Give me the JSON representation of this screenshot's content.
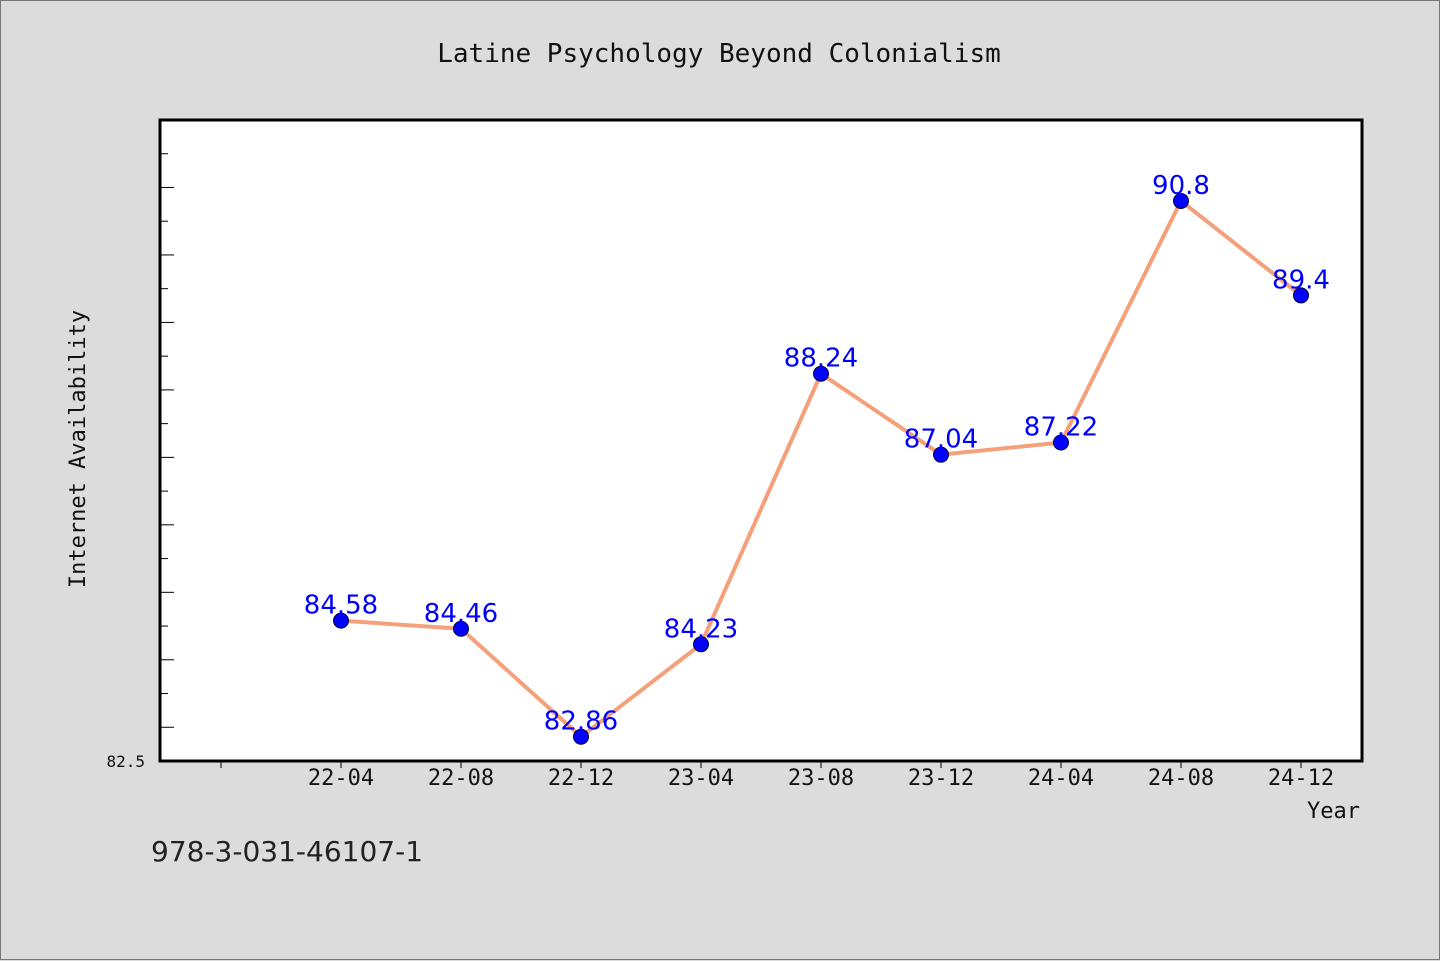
{
  "chart_data": {
    "type": "line",
    "title": "Latine Psychology Beyond Colonialism",
    "xlabel": "Year",
    "ylabel": "Internet Availability",
    "categories": [
      "22-04",
      "22-08",
      "22-12",
      "23-04",
      "23-08",
      "23-12",
      "24-04",
      "24-08",
      "24-12"
    ],
    "series": [
      {
        "values": [
          84.58,
          84.46,
          82.86,
          84.23,
          88.24,
          87.04,
          87.22,
          90.8,
          89.4
        ],
        "labels": [
          "84.58",
          "84.46",
          "82.86",
          "84.23",
          "88.24",
          "87.04",
          "87.22",
          "90.8",
          "89.4"
        ]
      }
    ],
    "y_tick_label": "82.5",
    "ylim": [
      82.5,
      92.0
    ],
    "grid": false,
    "legend": "none",
    "colors": {
      "line": "#f4a07a",
      "marker": "#0000ff",
      "data_label": "#0000ff",
      "plot_background": "#ffffff",
      "figure_background": "#dcdcdc"
    }
  },
  "footer": {
    "isbn": "978-3-031-46107-1"
  }
}
